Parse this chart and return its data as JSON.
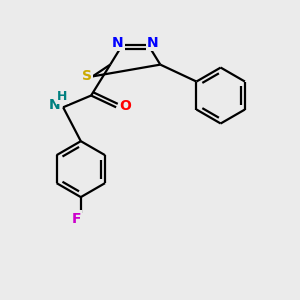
{
  "background_color": "#ebebeb",
  "bond_color": "#000000",
  "atom_colors": {
    "N": "#0000ff",
    "S": "#ccaa00",
    "O": "#ff0000",
    "F": "#cc00cc",
    "NH": "#008080",
    "H": "#008080"
  },
  "figsize": [
    3.0,
    3.0
  ],
  "dpi": 100,
  "lw": 1.6,
  "fontsize": 10
}
